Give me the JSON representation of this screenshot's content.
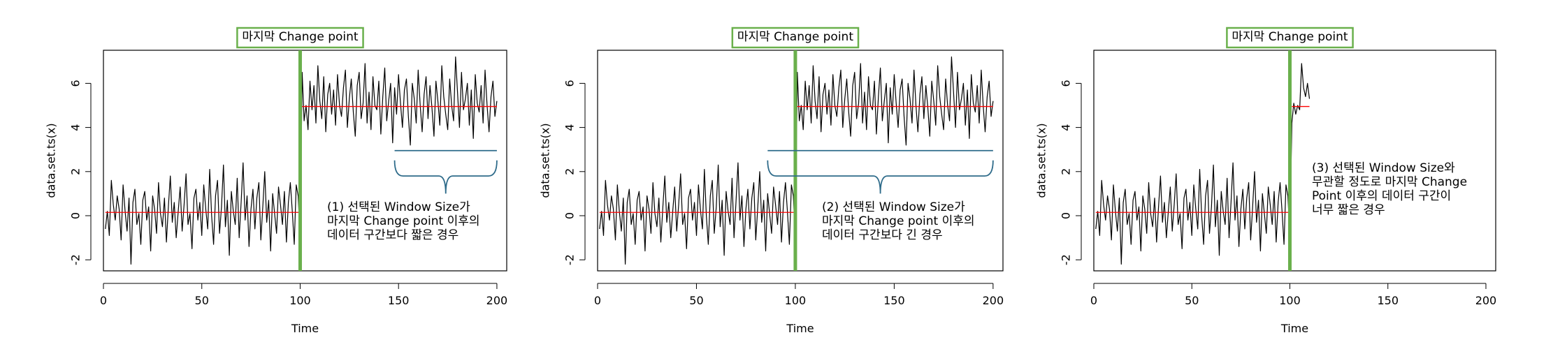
{
  "colors": {
    "series": "#000000",
    "mean_line": "#ff0000",
    "changepoint": "#6ab04c",
    "brace": "#2e6b8a",
    "label_box_border": "#6ab04c"
  },
  "chart_data": [
    {
      "type": "line",
      "xlabel": "Time",
      "ylabel": "data.set.ts(x)",
      "xlim": [
        0,
        205
      ],
      "ylim": [
        -2.5,
        7.5
      ],
      "xticks": [
        0,
        50,
        100,
        150,
        200
      ],
      "yticks": [
        -2,
        0,
        2,
        4,
        6
      ],
      "changepoint": {
        "x": 100,
        "label": "마지막 Change point"
      },
      "mean_segments": [
        {
          "x": [
            1,
            100
          ],
          "y": 0.15
        },
        {
          "x": 101,
          "x_end": 200,
          "y": 4.95
        }
      ],
      "series": [
        {
          "x_start": 1,
          "x_end": 200,
          "values": [
            -0.6,
            0.2,
            -0.9,
            1.6,
            0.5,
            -0.2,
            0.9,
            0.3,
            -1.1,
            1.4,
            0.2,
            -0.7,
            0.8,
            -2.2,
            0.6,
            1.2,
            -0.4,
            0.1,
            -1.3,
            0.7,
            1.1,
            -0.2,
            0.4,
            -1.6,
            0.9,
            0.3,
            -0.8,
            1.5,
            0.1,
            -0.5,
            0.8,
            -1.2,
            0.4,
            1.8,
            -0.3,
            0.6,
            -1.0,
            0.2,
            1.3,
            -0.7,
            0.5,
            1.9,
            -0.4,
            0.1,
            -1.5,
            0.8,
            1.2,
            -0.2,
            0.6,
            -0.9,
            1.4,
            0.3,
            -0.6,
            2.1,
            0.0,
            -1.3,
            0.9,
            1.6,
            -0.8,
            0.4,
            2.3,
            -0.5,
            0.7,
            -1.8,
            1.1,
            0.2,
            -0.4,
            1.7,
            -1.0,
            0.6,
            2.4,
            -0.2,
            0.9,
            -1.4,
            0.3,
            1.2,
            -0.6,
            0.8,
            1.5,
            -1.1,
            0.4,
            2.0,
            -0.3,
            0.7,
            -1.6,
            1.0,
            0.1,
            -0.8,
            1.3,
            0.5,
            -0.4,
            1.1,
            -1.2,
            0.6,
            1.5,
            0.2,
            -1.3,
            1.4,
            0.9,
            -1.0,
            6.5,
            4.3,
            5.0,
            3.9,
            6.1,
            4.8,
            5.9,
            4.2,
            6.8,
            5.2,
            4.4,
            6.3,
            3.8,
            5.5,
            6.0,
            4.6,
            5.7,
            4.1,
            6.4,
            5.0,
            4.5,
            5.8,
            6.6,
            4.0,
            5.3,
            6.2,
            4.7,
            3.6,
            5.9,
            6.5,
            4.4,
            5.1,
            6.9,
            4.2,
            5.6,
            3.9,
            6.3,
            5.0,
            4.8,
            6.1,
            3.7,
            5.4,
            6.7,
            4.3,
            5.2,
            6.0,
            3.3,
            5.8,
            4.6,
            6.4,
            5.1,
            4.0,
            5.7,
            6.2,
            4.5,
            3.2,
            6.0,
            5.3,
            4.2,
            6.6,
            5.0,
            3.8,
            5.5,
            6.3,
            4.4,
            5.9,
            4.9,
            3.6,
            6.1,
            5.2,
            4.1,
            6.8,
            5.4,
            4.6,
            3.9,
            6.2,
            5.0,
            4.3,
            7.2,
            5.6,
            4.0,
            6.5,
            4.8,
            5.3,
            6.0,
            4.1,
            5.7,
            3.5,
            6.4,
            5.1,
            4.7,
            5.9,
            4.2,
            6.6,
            5.0,
            3.8,
            5.4,
            6.1,
            4.5,
            5.2
          ]
        }
      ],
      "brace": {
        "x_start": 148,
        "x_end": 200
      },
      "annotation": [
        "(1) 선택된 Window Size가",
        "마지막 Change point 이후의",
        "데이터 구간보다 짧은 경우"
      ]
    },
    {
      "type": "line",
      "xlabel": "Time",
      "ylabel": "data.set.ts(x)",
      "xlim": [
        0,
        205
      ],
      "ylim": [
        -2.5,
        7.5
      ],
      "xticks": [
        0,
        50,
        100,
        150,
        200
      ],
      "yticks": [
        -2,
        0,
        2,
        4,
        6
      ],
      "changepoint": {
        "x": 100,
        "label": "마지막 Change point"
      },
      "mean_segments": [
        {
          "x": [
            1,
            100
          ],
          "y": 0.15
        },
        {
          "x": 101,
          "x_end": 200,
          "y": 4.95
        }
      ],
      "series": [
        {
          "x_start": 1,
          "x_end": 200,
          "values": [
            -0.6,
            0.2,
            -0.9,
            1.6,
            0.5,
            -0.2,
            0.9,
            0.3,
            -1.1,
            1.4,
            0.2,
            -0.7,
            0.8,
            -2.2,
            0.6,
            1.2,
            -0.4,
            0.1,
            -1.3,
            0.7,
            1.1,
            -0.2,
            0.4,
            -1.6,
            0.9,
            0.3,
            -0.8,
            1.5,
            0.1,
            -0.5,
            0.8,
            -1.2,
            0.4,
            1.8,
            -0.3,
            0.6,
            -1.0,
            0.2,
            1.3,
            -0.7,
            0.5,
            1.9,
            -0.4,
            0.1,
            -1.5,
            0.8,
            1.2,
            -0.2,
            0.6,
            -0.9,
            1.4,
            0.3,
            -0.6,
            2.1,
            0.0,
            -1.3,
            0.9,
            1.6,
            -0.8,
            0.4,
            2.3,
            -0.5,
            0.7,
            -1.8,
            1.1,
            0.2,
            -0.4,
            1.7,
            -1.0,
            0.6,
            2.4,
            -0.2,
            0.9,
            -1.4,
            0.3,
            1.2,
            -0.6,
            0.8,
            1.5,
            -1.1,
            0.4,
            2.0,
            -0.3,
            0.7,
            -1.6,
            1.0,
            0.1,
            -0.8,
            1.3,
            0.5,
            -0.4,
            1.1,
            -1.2,
            0.6,
            1.5,
            0.2,
            -1.3,
            1.4,
            0.9,
            -1.0,
            6.5,
            4.3,
            5.0,
            3.9,
            6.1,
            4.8,
            5.9,
            4.2,
            6.8,
            5.2,
            4.4,
            6.3,
            3.8,
            5.5,
            6.0,
            4.6,
            5.7,
            4.1,
            6.4,
            5.0,
            4.5,
            5.8,
            6.6,
            4.0,
            5.3,
            6.2,
            4.7,
            3.6,
            5.9,
            6.5,
            4.4,
            5.1,
            6.9,
            4.2,
            5.6,
            3.9,
            6.3,
            5.0,
            4.8,
            6.1,
            3.7,
            5.4,
            6.7,
            4.3,
            5.2,
            6.0,
            3.3,
            5.8,
            4.6,
            6.4,
            5.1,
            4.0,
            5.7,
            6.2,
            4.5,
            3.2,
            6.0,
            5.3,
            4.2,
            6.6,
            5.0,
            3.8,
            5.5,
            6.3,
            4.4,
            5.9,
            4.9,
            3.6,
            6.1,
            5.2,
            4.1,
            6.8,
            5.4,
            4.6,
            3.9,
            6.2,
            5.0,
            4.3,
            7.2,
            5.6,
            4.0,
            6.5,
            4.8,
            5.3,
            6.0,
            4.1,
            5.7,
            3.5,
            6.4,
            5.1,
            4.7,
            5.9,
            4.2,
            6.6,
            5.0,
            3.8,
            5.4,
            6.1,
            4.5,
            5.2
          ]
        }
      ],
      "brace": {
        "x_start": 86,
        "x_end": 200
      },
      "annotation": [
        "(2) 선택된 Window Size가",
        "마지막 Change point 이후의",
        "데이터 구간보다 긴 경우"
      ]
    },
    {
      "type": "line",
      "xlabel": "Time",
      "ylabel": "data.set.ts(x)",
      "xlim": [
        0,
        205
      ],
      "ylim": [
        -2.5,
        7.5
      ],
      "xticks": [
        0,
        50,
        100,
        150,
        200
      ],
      "yticks": [
        -2,
        0,
        2,
        4,
        6
      ],
      "changepoint": {
        "x": 100,
        "label": "마지막 Change point"
      },
      "mean_segments": [
        {
          "x": [
            1,
            100
          ],
          "y": 0.15
        },
        {
          "x": 101,
          "x_end": 110,
          "y": 4.95
        }
      ],
      "series": [
        {
          "x_start": 1,
          "x_end": 110,
          "values": [
            -0.6,
            0.2,
            -0.9,
            1.6,
            0.5,
            -0.2,
            0.9,
            0.3,
            -1.1,
            1.4,
            0.2,
            -0.7,
            0.8,
            -2.2,
            0.6,
            1.2,
            -0.4,
            0.1,
            -1.3,
            0.7,
            1.1,
            -0.2,
            0.4,
            -1.6,
            0.9,
            0.3,
            -0.8,
            1.5,
            0.1,
            -0.5,
            0.8,
            -1.2,
            0.4,
            1.8,
            -0.3,
            0.6,
            -1.0,
            0.2,
            1.3,
            -0.7,
            0.5,
            1.9,
            -0.4,
            0.1,
            -1.5,
            0.8,
            1.2,
            -0.2,
            0.6,
            -0.9,
            1.4,
            0.3,
            -0.6,
            2.1,
            0.0,
            -1.3,
            0.9,
            1.6,
            -0.8,
            0.4,
            2.3,
            -0.5,
            0.7,
            -1.8,
            1.1,
            0.2,
            -0.4,
            1.7,
            -1.0,
            0.6,
            2.4,
            -0.2,
            0.9,
            -1.4,
            0.3,
            1.2,
            -0.6,
            0.8,
            1.5,
            -1.1,
            0.4,
            2.0,
            -0.3,
            0.7,
            -1.6,
            1.0,
            0.1,
            -0.8,
            1.3,
            0.5,
            -0.4,
            1.1,
            -1.2,
            0.6,
            1.5,
            0.2,
            -1.3,
            1.4,
            0.9,
            -1.0,
            4.2,
            5.1,
            4.6,
            5.0,
            4.8,
            6.9,
            5.8,
            5.4,
            6.0,
            5.3
          ]
        }
      ],
      "brace": null,
      "annotation": [
        "(3) 선택된 Window Size와",
        "무관할 정도로 마지막 Change",
        "Point 이후의 데이터 구간이",
        "너무 짧은 경우"
      ]
    }
  ]
}
